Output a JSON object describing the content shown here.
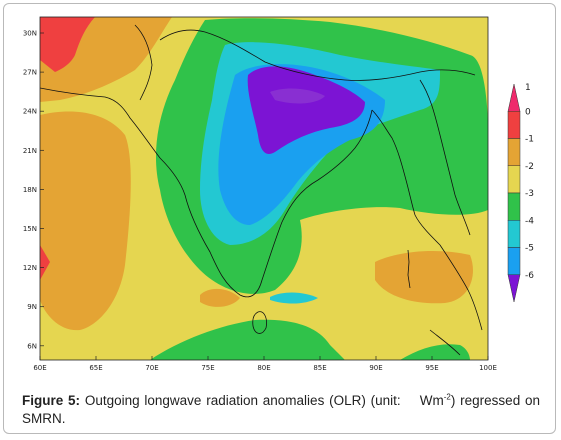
{
  "figure": {
    "label": "Figure 5:",
    "caption_text": "Outgoing longwave radiation anomalies (OLR) (unit:",
    "caption_unit": "Wm",
    "caption_unit_exponent": "-2",
    "caption_text_end": ") regressed on SMRN."
  },
  "colors": {
    "ocean_base": "#e5d650",
    "level_neg6": "#7c14d4",
    "level_neg5": "#1aa0f0",
    "level_neg4": "#23c8d2",
    "level_neg3": "#30c24a",
    "level_neg2": "#e5d650",
    "level_neg1": "#e4a434",
    "level_0": "#ef4040",
    "level_1": "#ef2a6c",
    "coastline": "#111111"
  },
  "map": {
    "lon_ticks": [
      "60E",
      "65E",
      "70E",
      "75E",
      "80E",
      "85E",
      "90E",
      "95E",
      "100E"
    ],
    "lat_ticks": [
      "30N",
      "27N",
      "24N",
      "21N",
      "18N",
      "15N",
      "12N",
      "9N",
      "6N"
    ],
    "lon_range": [
      60,
      100
    ],
    "lat_range": [
      5,
      31
    ]
  },
  "colorbar": {
    "labels": [
      "1",
      "0",
      "-1",
      "-2",
      "-3",
      "-4",
      "-5",
      "-6"
    ],
    "colors": [
      "#ef2a6c",
      "#ef4040",
      "#e4a434",
      "#e5d650",
      "#30c24a",
      "#23c8d2",
      "#1aa0f0",
      "#7c14d4"
    ]
  }
}
